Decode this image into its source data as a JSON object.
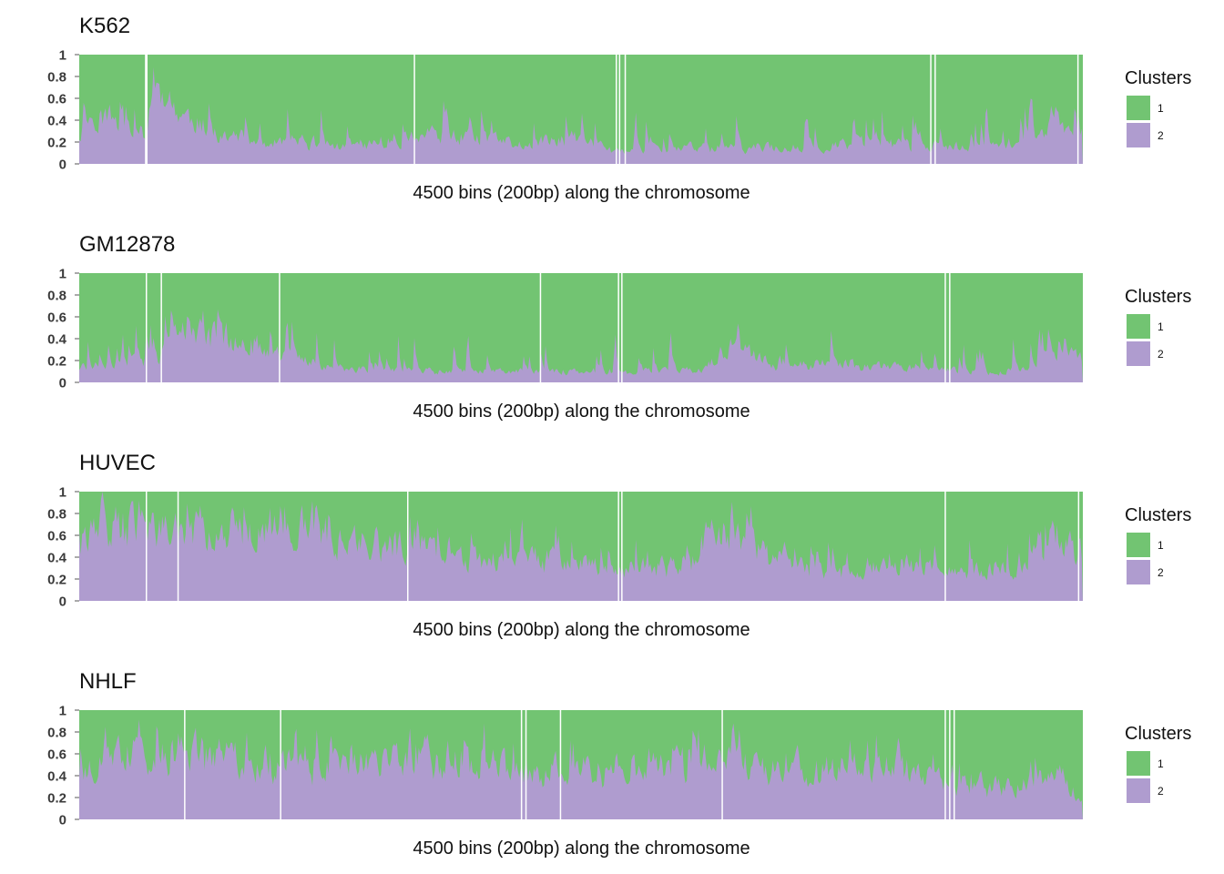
{
  "colors": {
    "cluster1": "#72c472",
    "cluster2": "#af9ccf",
    "gap": "#ffffff",
    "axis": "#555555"
  },
  "chart_data": [
    {
      "type": "area",
      "title": "K562",
      "xlabel": "4500 bins (200bp) along the chromosome",
      "ylabel": "",
      "ylim": [
        0,
        1
      ],
      "yticks": [
        "0",
        "0.2",
        "0.4",
        "0.6",
        "0.8",
        "1"
      ],
      "stacked": true,
      "series": [
        {
          "name": "1"
        },
        {
          "name": "2"
        }
      ],
      "legend": {
        "title": "Clusters",
        "position": "right",
        "labels": [
          "1",
          "2"
        ]
      },
      "cluster2_profile": [
        [
          0,
          0.3
        ],
        [
          60,
          0.45
        ],
        [
          200,
          0.4
        ],
        [
          300,
          0.25
        ],
        [
          320,
          0.75
        ],
        [
          420,
          0.5
        ],
        [
          600,
          0.3
        ],
        [
          800,
          0.18
        ],
        [
          1000,
          0.22
        ],
        [
          1200,
          0.15
        ],
        [
          1600,
          0.28
        ],
        [
          2000,
          0.18
        ],
        [
          2200,
          0.25
        ],
        [
          2400,
          0.12
        ],
        [
          2800,
          0.16
        ],
        [
          3200,
          0.15
        ],
        [
          3600,
          0.2
        ],
        [
          4000,
          0.15
        ],
        [
          4300,
          0.22
        ],
        [
          4380,
          0.55
        ],
        [
          4420,
          0.28
        ],
        [
          4500,
          0.25
        ]
      ],
      "gap_bins": [
        295,
        300,
        1500,
        2405,
        2420,
        2445,
        3815,
        3835,
        4475
      ],
      "seed": 11
    },
    {
      "type": "area",
      "title": "GM12878",
      "xlabel": "4500 bins (200bp) along the chromosome",
      "ylabel": "",
      "ylim": [
        0,
        1
      ],
      "yticks": [
        "0",
        "0.2",
        "0.4",
        "0.6",
        "0.8",
        "1"
      ],
      "stacked": true,
      "series": [
        {
          "name": "1"
        },
        {
          "name": "2"
        }
      ],
      "legend": {
        "title": "Clusters",
        "position": "right",
        "labels": [
          "1",
          "2"
        ]
      },
      "cluster2_profile": [
        [
          0,
          0.15
        ],
        [
          200,
          0.18
        ],
        [
          350,
          0.22
        ],
        [
          400,
          0.4
        ],
        [
          700,
          0.45
        ],
        [
          900,
          0.25
        ],
        [
          1200,
          0.12
        ],
        [
          2000,
          0.1
        ],
        [
          2800,
          0.12
        ],
        [
          2900,
          0.35
        ],
        [
          3100,
          0.2
        ],
        [
          3600,
          0.15
        ],
        [
          4000,
          0.1
        ],
        [
          4300,
          0.12
        ],
        [
          4400,
          0.45
        ],
        [
          4500,
          0.2
        ]
      ],
      "gap_bins": [
        298,
        365,
        895,
        2065,
        2415,
        2430,
        3880,
        3900
      ],
      "seed": 23
    },
    {
      "type": "area",
      "title": "HUVEC",
      "xlabel": "4500 bins (200bp) along the chromosome",
      "ylabel": "",
      "ylim": [
        0,
        1
      ],
      "yticks": [
        "0",
        "0.2",
        "0.4",
        "0.6",
        "0.8",
        "1"
      ],
      "stacked": true,
      "series": [
        {
          "name": "1"
        },
        {
          "name": "2"
        }
      ],
      "legend": {
        "title": "Clusters",
        "position": "right",
        "labels": [
          "1",
          "2"
        ]
      },
      "cluster2_profile": [
        [
          0,
          0.6
        ],
        [
          200,
          0.7
        ],
        [
          500,
          0.6
        ],
        [
          900,
          0.72
        ],
        [
          1200,
          0.55
        ],
        [
          1500,
          0.5
        ],
        [
          1800,
          0.35
        ],
        [
          2100,
          0.4
        ],
        [
          2400,
          0.3
        ],
        [
          2700,
          0.35
        ],
        [
          2850,
          0.65
        ],
        [
          3100,
          0.4
        ],
        [
          3500,
          0.3
        ],
        [
          3900,
          0.35
        ],
        [
          4200,
          0.28
        ],
        [
          4380,
          0.6
        ],
        [
          4500,
          0.3
        ]
      ],
      "gap_bins": [
        298,
        440,
        1470,
        2415,
        2430,
        3880,
        4478
      ],
      "seed": 37
    },
    {
      "type": "area",
      "title": "NHLF",
      "xlabel": "4500 bins (200bp) along the chromosome",
      "ylabel": "",
      "ylim": [
        0,
        1
      ],
      "yticks": [
        "0",
        "0.2",
        "0.4",
        "0.6",
        "0.8",
        "1"
      ],
      "stacked": true,
      "series": [
        {
          "name": "1"
        },
        {
          "name": "2"
        }
      ],
      "legend": {
        "title": "Clusters",
        "position": "right",
        "labels": [
          "1",
          "2"
        ]
      },
      "cluster2_profile": [
        [
          0,
          0.5
        ],
        [
          300,
          0.65
        ],
        [
          800,
          0.55
        ],
        [
          1200,
          0.5
        ],
        [
          1600,
          0.6
        ],
        [
          2000,
          0.45
        ],
        [
          2400,
          0.5
        ],
        [
          2800,
          0.55
        ],
        [
          3200,
          0.45
        ],
        [
          3600,
          0.5
        ],
        [
          3900,
          0.35
        ],
        [
          4200,
          0.3
        ],
        [
          4400,
          0.4
        ],
        [
          4500,
          0.15
        ]
      ],
      "gap_bins": [
        470,
        900,
        1980,
        2000,
        2155,
        2880,
        3880,
        3900,
        3920
      ],
      "seed": 53
    }
  ]
}
